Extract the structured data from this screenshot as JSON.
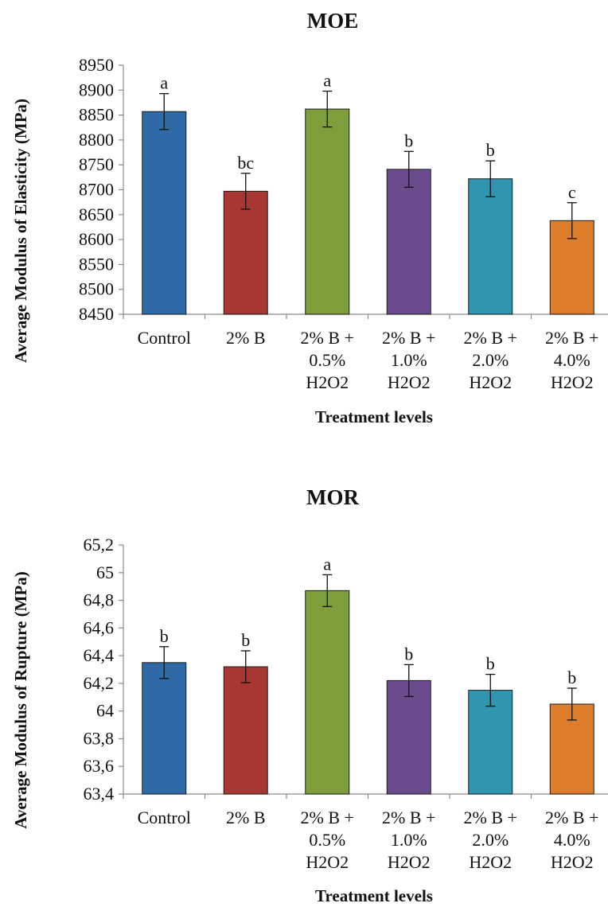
{
  "chart_data": [
    {
      "type": "bar",
      "title": "MOE",
      "xlabel": "Treatment levels",
      "ylabel": "Average Modulus of Elasticity (MPa)",
      "ylim": [
        8450,
        8950
      ],
      "yticks": [
        "8450",
        "8500",
        "8550",
        "8600",
        "8650",
        "8700",
        "8750",
        "8800",
        "8850",
        "8900",
        "8950"
      ],
      "categories": [
        [
          "Control"
        ],
        [
          "2% B"
        ],
        [
          "2% B +",
          "0.5%",
          "H2O2"
        ],
        [
          "2% B +",
          "1.0%",
          "H2O2"
        ],
        [
          "2% B +",
          "2.0%",
          "H2O2"
        ],
        [
          "2% B +",
          "4.0%",
          "H2O2"
        ]
      ],
      "values": [
        8857,
        8697,
        8862,
        8741,
        8722,
        8638
      ],
      "errors": [
        36,
        36,
        36,
        36,
        36,
        36
      ],
      "significance": [
        "a",
        "bc",
        "a",
        "b",
        "b",
        "c"
      ],
      "colors": [
        "#2e6aa8",
        "#a83734",
        "#7e9e3c",
        "#6a4c8c",
        "#3096b0",
        "#dd7d2c"
      ]
    },
    {
      "type": "bar",
      "title": "MOR",
      "xlabel": "Treatment levels",
      "ylabel": "Average Modulus of Rupture (MPa)",
      "ylim": [
        63.4,
        65.2
      ],
      "yticks": [
        "63,4",
        "63,6",
        "63,8",
        "64",
        "64,2",
        "64,4",
        "64,6",
        "64,8",
        "65",
        "65,2"
      ],
      "categories": [
        [
          "Control"
        ],
        [
          "2% B"
        ],
        [
          "2% B +",
          "0.5%",
          "H2O2"
        ],
        [
          "2% B +",
          "1.0%",
          "H2O2"
        ],
        [
          "2% B +",
          "2.0%",
          "H2O2"
        ],
        [
          "2% B +",
          "4.0%",
          "H2O2"
        ]
      ],
      "values": [
        64.35,
        64.32,
        64.87,
        64.22,
        64.15,
        64.05
      ],
      "errors": [
        0.115,
        0.115,
        0.115,
        0.115,
        0.115,
        0.115
      ],
      "significance": [
        "b",
        "b",
        "a",
        "b",
        "b",
        "b"
      ],
      "colors": [
        "#2e6aa8",
        "#a83734",
        "#7e9e3c",
        "#6a4c8c",
        "#3096b0",
        "#dd7d2c"
      ]
    }
  ]
}
